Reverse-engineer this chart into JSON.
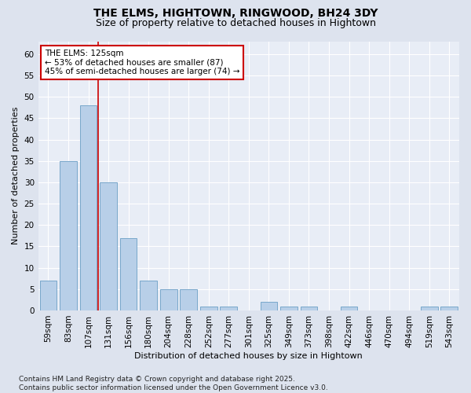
{
  "title": "THE ELMS, HIGHTOWN, RINGWOOD, BH24 3DY",
  "subtitle": "Size of property relative to detached houses in Hightown",
  "xlabel": "Distribution of detached houses by size in Hightown",
  "ylabel": "Number of detached properties",
  "categories": [
    "59sqm",
    "83sqm",
    "107sqm",
    "131sqm",
    "156sqm",
    "180sqm",
    "204sqm",
    "228sqm",
    "252sqm",
    "277sqm",
    "301sqm",
    "325sqm",
    "349sqm",
    "373sqm",
    "398sqm",
    "422sqm",
    "446sqm",
    "470sqm",
    "494sqm",
    "519sqm",
    "543sqm"
  ],
  "values": [
    7,
    35,
    48,
    30,
    17,
    7,
    5,
    5,
    1,
    1,
    0,
    2,
    1,
    1,
    0,
    1,
    0,
    0,
    0,
    1,
    1
  ],
  "bar_color": "#b8cfe8",
  "bar_edge_color": "#6a9ec5",
  "background_color": "#dde3ee",
  "plot_bg_color": "#e8edf6",
  "grid_color": "#ffffff",
  "vline_x": 2.5,
  "vline_color": "#cc0000",
  "annotation_text": "THE ELMS: 125sqm\n← 53% of detached houses are smaller (87)\n45% of semi-detached houses are larger (74) →",
  "annotation_box_color": "#ffffff",
  "annotation_box_edge": "#cc0000",
  "ylim": [
    0,
    63
  ],
  "yticks": [
    0,
    5,
    10,
    15,
    20,
    25,
    30,
    35,
    40,
    45,
    50,
    55,
    60
  ],
  "footer": "Contains HM Land Registry data © Crown copyright and database right 2025.\nContains public sector information licensed under the Open Government Licence v3.0.",
  "title_fontsize": 10,
  "subtitle_fontsize": 9,
  "axis_label_fontsize": 8,
  "tick_fontsize": 7.5,
  "annotation_fontsize": 7.5,
  "footer_fontsize": 6.5
}
